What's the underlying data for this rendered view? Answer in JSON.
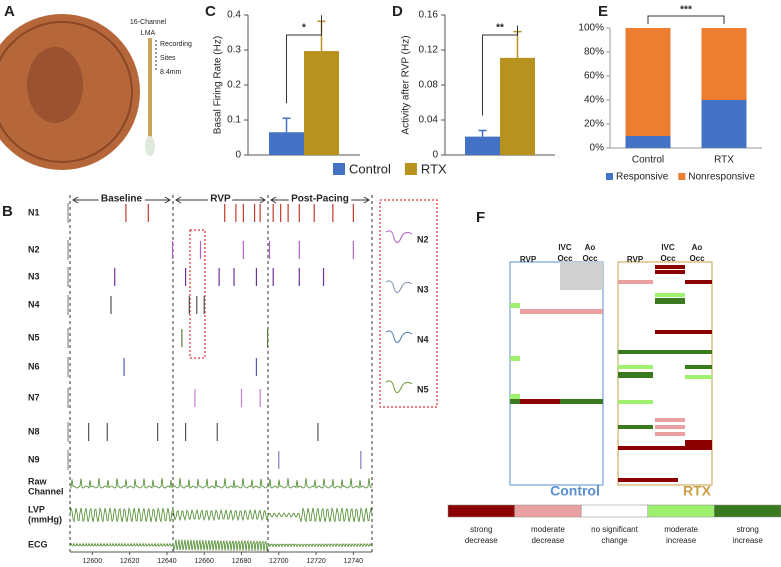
{
  "chart_data": [
    {
      "type": "bar",
      "label": "C",
      "ylabel": "Basal Firing Rate (Hz)",
      "ylim": [
        0,
        0.4
      ],
      "yticks": [
        0,
        0.1,
        0.2,
        0.3,
        0.4
      ],
      "annotation": "*",
      "series": [
        {
          "name": "Control",
          "color": "#4472c4",
          "values": [
            0.065
          ],
          "errors": [
            0.04
          ]
        },
        {
          "name": "RTX",
          "color": "#b8921e",
          "values": [
            0.297
          ],
          "errors": [
            0.085
          ]
        }
      ]
    },
    {
      "type": "bar",
      "label": "D",
      "ylabel": "Activity after RVP (Hz)",
      "ylim": [
        0,
        0.16
      ],
      "yticks": [
        0,
        0.04,
        0.08,
        0.12,
        0.16
      ],
      "annotation": "**",
      "series": [
        {
          "color": "#4472c4",
          "values": [
            0.021
          ],
          "errors": [
            0.007
          ]
        },
        {
          "color": "#b8921e",
          "values": [
            0.111
          ],
          "errors": [
            0.03
          ]
        }
      ]
    },
    {
      "type": "stacked_bar",
      "label": "E",
      "categories": [
        "Control",
        "RTX"
      ],
      "ylim": [
        0,
        100
      ],
      "annotation": "***",
      "yticks": [
        {
          "value": 0,
          "label": "0%"
        },
        {
          "value": 20,
          "label": "20%"
        },
        {
          "value": 40,
          "label": "40%"
        },
        {
          "value": 60,
          "label": "60%"
        },
        {
          "value": 80,
          "label": "80%"
        },
        {
          "value": 100,
          "label": "100%"
        }
      ],
      "series": [
        {
          "name": "Responsive",
          "color": "#4472c4",
          "values": [
            10,
            40
          ]
        },
        {
          "name": "Nonresponsive",
          "color": "#ed7d31",
          "values": [
            90,
            60
          ]
        }
      ]
    },
    {
      "type": "raster",
      "label": "B",
      "xlim": [
        12588,
        12750
      ],
      "xticks": [
        12600,
        12620,
        12640,
        12660,
        12680,
        12700,
        12720,
        12740
      ],
      "phases": [
        "Baseline",
        "RVP",
        "Post-Pacing"
      ],
      "series": [
        {
          "name": "N1",
          "color": "#c0392b",
          "values": [
            12618,
            12630,
            12671,
            12677,
            12681,
            12687,
            12690,
            12697,
            12701,
            12705,
            12711,
            12719,
            12729,
            12740
          ]
        },
        {
          "name": "N2",
          "color": "#b05fc8",
          "values": [
            12643,
            12658,
            12681,
            12695,
            12711,
            12740
          ]
        },
        {
          "name": "N3",
          "color": "#7030a0",
          "values": [
            12612,
            12650,
            12668,
            12676,
            12688,
            12697,
            12711,
            12724
          ]
        },
        {
          "name": "N4",
          "color": "#555555",
          "values": [
            12610,
            12652,
            12656,
            12660
          ]
        },
        {
          "name": "N5",
          "color": "#548235",
          "values": [
            12648,
            12694
          ]
        },
        {
          "name": "N6",
          "color": "#4a5fb0",
          "values": [
            12617,
            12688
          ]
        },
        {
          "name": "N7",
          "color": "#c080d0",
          "values": [
            12655,
            12680,
            12690
          ]
        },
        {
          "name": "N8",
          "color": "#555555",
          "values": [
            12598,
            12608,
            12635,
            12650,
            12667,
            12721
          ]
        },
        {
          "name": "N9",
          "color": "#8080c0",
          "values": [
            12700,
            12744
          ]
        }
      ],
      "traces": [
        [
          "Raw",
          "Channel"
        ],
        [
          "LVP",
          "(mmHg)"
        ],
        [
          "ECG"
        ]
      ]
    }
  ],
  "panel_A": {
    "label": "A",
    "probe": [
      "16-Channel",
      "LMA"
    ],
    "sites": [
      "Recording",
      "Sites",
      "8.4mm"
    ]
  },
  "panel_B_inset": [
    "N2",
    "N3",
    "N4",
    "N5"
  ],
  "panel_F": {
    "label": "F",
    "columns": [
      [
        "RVP"
      ],
      [
        "IVC",
        "Occ"
      ],
      [
        "Ao",
        "Occ"
      ]
    ],
    "groups": [
      "Control",
      "RTX"
    ],
    "legend": [
      [
        "strong",
        "decrease"
      ],
      [
        "moderate",
        "decrease"
      ],
      [
        "no significant",
        "change"
      ],
      [
        "moderate",
        "increase"
      ],
      [
        "strong",
        "increase"
      ]
    ]
  }
}
